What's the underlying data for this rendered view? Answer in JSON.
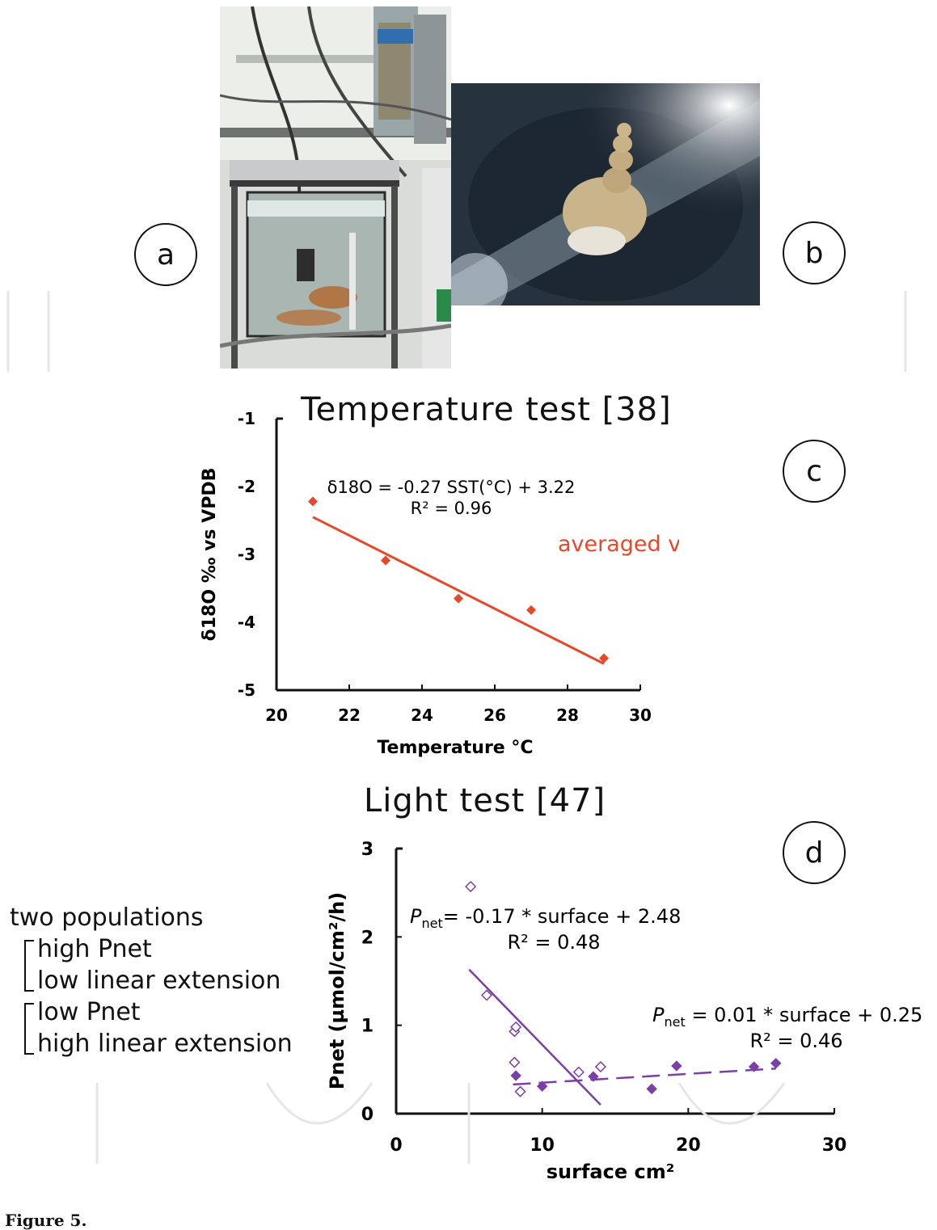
{
  "panels": {
    "a": {
      "label": "a"
    },
    "b": {
      "label": "b"
    },
    "c": {
      "label": "c"
    },
    "d": {
      "label": "d"
    }
  },
  "side_note": {
    "heading": "two populations",
    "group1": [
      "high Pnet",
      "low linear extension"
    ],
    "group2": [
      "low Pnet",
      "high linear extension"
    ]
  },
  "caption": "Figure 5.",
  "chart_data": [
    {
      "type": "scatter",
      "title": "Temperature test [38]",
      "xlabel": "Temperature °C",
      "ylabel": "δ18O ‰ vs VPDB",
      "xlim": [
        20,
        30
      ],
      "ylim": [
        -5,
        -1
      ],
      "xticks": [
        20,
        22,
        24,
        26,
        28,
        30
      ],
      "yticks": [
        -5,
        -4,
        -3,
        -2,
        -1
      ],
      "series": [
        {
          "name": "averaged values",
          "color": "#e8482a",
          "points": [
            [
              21,
              -2.22
            ],
            [
              23,
              -3.09
            ],
            [
              25,
              -3.65
            ],
            [
              27,
              -3.82
            ],
            [
              29,
              -4.53
            ]
          ]
        }
      ],
      "trendline": {
        "slope": -0.27,
        "intercept": 3.22,
        "x_range": [
          21,
          29
        ],
        "color": "#e8482a"
      },
      "annotations": {
        "equation": "δ18O = -0.27 SST(°C) + 3.22",
        "r2": "R² = 0.96"
      }
    },
    {
      "type": "scatter",
      "title": "Light test [47]",
      "xlabel": "surface cm²",
      "ylabel": "Pnet (µmol/cm²/h)",
      "xlim": [
        0,
        30
      ],
      "ylim": [
        0,
        3
      ],
      "xticks": [
        0,
        10,
        20,
        30
      ],
      "yticks": [
        0,
        1,
        2,
        3
      ],
      "series": [
        {
          "name": "high Pnet / low linear extension",
          "marker": "open-diamond",
          "color": "#7b3fa6",
          "points": [
            [
              5.1,
              2.57
            ],
            [
              6.2,
              1.34
            ],
            [
              8.1,
              0.93
            ],
            [
              8.2,
              0.98
            ],
            [
              8.1,
              0.58
            ],
            [
              8.5,
              0.25
            ],
            [
              12.5,
              0.47
            ],
            [
              14,
              0.53
            ]
          ]
        },
        {
          "name": "low Pnet / high linear extension",
          "marker": "filled-diamond",
          "color": "#7b3fa6",
          "points": [
            [
              8.2,
              0.43
            ],
            [
              10,
              0.31
            ],
            [
              13.5,
              0.42
            ],
            [
              17.5,
              0.28
            ],
            [
              19.2,
              0.54
            ],
            [
              24.5,
              0.53
            ],
            [
              26,
              0.57
            ]
          ]
        }
      ],
      "trendlines": [
        {
          "slope": -0.17,
          "intercept": 2.48,
          "x_range": [
            5,
            14
          ],
          "style": "solid",
          "color": "#7b3fa6"
        },
        {
          "slope": 0.01,
          "intercept": 0.25,
          "x_range": [
            8,
            26
          ],
          "style": "dashed",
          "color": "#7b3fa6"
        }
      ],
      "annotations": {
        "eq1_sub": "net",
        "eq1_main": "= -0.17 * surface  + 2.48",
        "eq1_r2": "R² = 0.48",
        "eq2_sub": "net",
        "eq2_main": " = 0.01 * surface  + 0.25",
        "eq2_r2": "R² = 0.46"
      }
    }
  ]
}
